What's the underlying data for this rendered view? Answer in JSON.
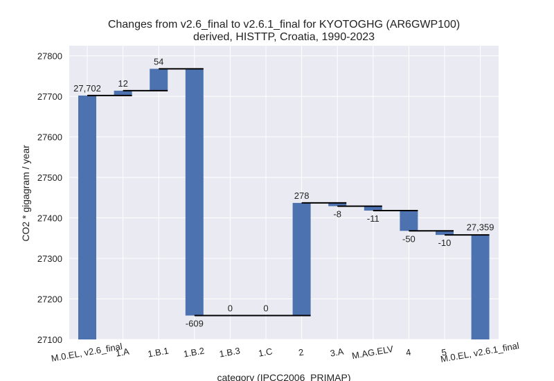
{
  "chart_data": {
    "type": "waterfall",
    "title_line1": "Changes from v2.6_final to v2.6.1_final for KYOTOGHG (AR6GWP100)",
    "title_line2": "derived, HISTTP, Croatia, 1990-2023",
    "xlabel": "category (IPCC2006_PRIMAP)",
    "ylabel": "CO2 * gigagram / year",
    "ylim": [
      27100,
      27825
    ],
    "yticks": [
      27100,
      27200,
      27300,
      27400,
      27500,
      27600,
      27700,
      27800
    ],
    "grid": true,
    "bar_color": "#4c72b0",
    "categories": [
      "M.0.EL, v2.6_final",
      "1.A",
      "1.B.1",
      "1.B.2",
      "1.B.3",
      "1.C",
      "2",
      "3.A",
      "M.AG.ELV",
      "4",
      "5",
      "M.0.EL, v2.6.1_final"
    ],
    "kinds": [
      "total",
      "delta",
      "delta",
      "delta",
      "delta",
      "delta",
      "delta",
      "delta",
      "delta",
      "delta",
      "delta",
      "total"
    ],
    "values": [
      27702,
      12,
      54,
      -609,
      0,
      0,
      278,
      -8,
      -11,
      -50,
      -10,
      27359
    ],
    "labels": [
      "27,702",
      "12",
      "54",
      "-609",
      "0",
      "0",
      "278",
      "-8",
      "-11",
      "-50",
      "-10",
      "27,359"
    ]
  }
}
